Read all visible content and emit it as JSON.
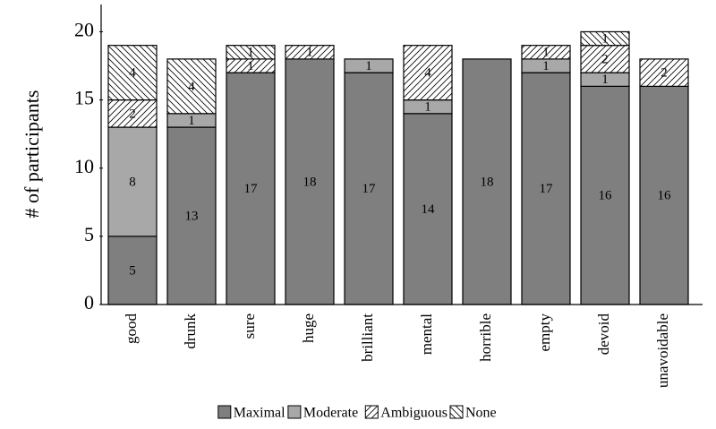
{
  "chart_data": {
    "type": "stacked-bar",
    "y_label": "# of participants",
    "categories": [
      "good",
      "drunk",
      "sure",
      "huge",
      "brilliant",
      "mental",
      "horrible",
      "empty",
      "devoid",
      "unavoidable"
    ],
    "series": [
      {
        "name": "Maximal",
        "color": "#7f7f7f",
        "values": [
          5,
          13,
          17,
          18,
          17,
          14,
          18,
          17,
          16,
          16
        ]
      },
      {
        "name": "Moderate",
        "color": "#a8a8a8",
        "values": [
          8,
          1,
          0,
          0,
          1,
          1,
          0,
          1,
          1,
          0
        ]
      },
      {
        "name": "Ambiguous",
        "color": "#ffffff",
        "hatch": "/",
        "values": [
          2,
          0,
          1,
          1,
          0,
          4,
          0,
          1,
          2,
          2
        ]
      },
      {
        "name": "None",
        "color": "#ffffff",
        "hatch": "\\",
        "values": [
          4,
          4,
          1,
          0,
          0,
          0,
          0,
          0,
          1,
          0
        ]
      }
    ],
    "ylim": [
      0,
      22
    ],
    "yticks": [
      0,
      5,
      10,
      15,
      20
    ],
    "legend": "bottom"
  }
}
